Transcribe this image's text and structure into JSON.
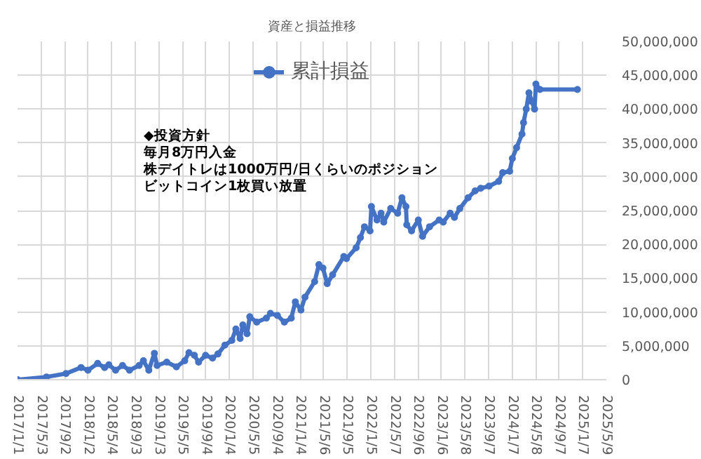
{
  "chart_data": {
    "type": "line",
    "title": "資産と損益推移",
    "x": [
      "2017-01-01",
      "2017-05-31",
      "2017-09-09",
      "2017-11-26",
      "2018-01-01",
      "2018-02-20",
      "2018-03-28",
      "2018-04-19",
      "2018-05-24",
      "2018-06-29",
      "2018-08-04",
      "2018-09-23",
      "2018-10-15",
      "2018-11-12",
      "2018-12-11",
      "2018-12-25",
      "2019-02-13",
      "2019-04-04",
      "2019-05-17",
      "2019-06-08",
      "2019-07-06",
      "2019-07-28",
      "2019-09-02",
      "2019-10-08",
      "2019-11-05",
      "2019-12-11",
      "2020-01-16",
      "2020-02-06",
      "2020-02-28",
      "2020-03-13",
      "2020-04-04",
      "2020-04-18",
      "2020-05-24",
      "2020-07-13",
      "2020-08-03",
      "2020-09-08",
      "2020-10-14",
      "2020-11-19",
      "2020-12-10",
      "2021-01-08",
      "2021-01-29",
      "2021-03-20",
      "2021-04-11",
      "2021-05-02",
      "2021-05-24",
      "2021-06-21",
      "2021-08-18",
      "2021-09-01",
      "2021-10-21",
      "2021-11-12",
      "2021-12-03",
      "2022-01-01",
      "2022-01-08",
      "2022-02-06",
      "2022-02-27",
      "2022-03-13",
      "2022-04-18",
      "2022-05-24",
      "2022-06-15",
      "2022-07-06",
      "2022-07-10",
      "2022-08-04",
      "2022-09-08",
      "2022-09-30",
      "2022-11-05",
      "2022-12-25",
      "2023-01-15",
      "2023-02-20",
      "2023-03-14",
      "2023-04-11",
      "2023-05-24",
      "2023-06-29",
      "2023-07-28",
      "2023-09-09",
      "2023-10-29",
      "2023-11-19",
      "2023-12-25",
      "2024-01-08",
      "2024-01-30",
      "2024-02-27",
      "2024-03-06",
      "2024-03-20",
      "2024-04-03",
      "2024-04-18",
      "2024-05-02",
      "2024-05-09",
      "2024-05-30",
      "2024-12-10"
    ],
    "series": [
      {
        "name": "累計損益",
        "color": "#4472c4",
        "values": [
          0,
          400000,
          900000,
          1800000,
          1400000,
          2400000,
          1800000,
          2200000,
          1400000,
          2100000,
          1400000,
          2100000,
          2800000,
          1400000,
          3900000,
          2100000,
          2600000,
          1900000,
          2800000,
          4000000,
          3600000,
          2600000,
          3600000,
          3200000,
          3800000,
          5100000,
          5800000,
          7500000,
          6100000,
          8100000,
          6800000,
          9300000,
          8500000,
          9100000,
          9800000,
          9500000,
          8500000,
          9100000,
          11500000,
          10300000,
          12200000,
          14500000,
          17000000,
          16500000,
          14200000,
          15500000,
          18200000,
          17900000,
          19500000,
          21000000,
          22600000,
          22000000,
          25600000,
          23600000,
          24600000,
          23300000,
          25300000,
          24600000,
          26900000,
          25600000,
          22900000,
          22000000,
          23600000,
          21200000,
          22600000,
          23600000,
          23300000,
          24600000,
          24000000,
          25300000,
          26900000,
          27900000,
          28300000,
          28600000,
          29300000,
          30600000,
          30800000,
          32700000,
          34300000,
          36300000,
          38000000,
          40000000,
          42400000,
          41100000,
          40000000,
          43700000,
          42900000,
          42900000
        ]
      }
    ],
    "xlim": [
      "2017-01-01",
      "2025-05-09"
    ],
    "xticks": [
      {
        "value": "2017-01-01",
        "label": "2017/1/1"
      },
      {
        "value": "2017-05-03",
        "label": "2017/5/3"
      },
      {
        "value": "2017-09-02",
        "label": "2017/9/2"
      },
      {
        "value": "2018-01-02",
        "label": "2018/1/2"
      },
      {
        "value": "2018-05-04",
        "label": "2018/5/4"
      },
      {
        "value": "2018-09-03",
        "label": "2018/9/3"
      },
      {
        "value": "2019-01-03",
        "label": "2019/1/3"
      },
      {
        "value": "2019-05-05",
        "label": "2019/5/5"
      },
      {
        "value": "2019-09-04",
        "label": "2019/9/4"
      },
      {
        "value": "2020-01-04",
        "label": "2020/1/4"
      },
      {
        "value": "2020-05-05",
        "label": "2020/5/5"
      },
      {
        "value": "2020-09-04",
        "label": "2020/9/4"
      },
      {
        "value": "2021-01-04",
        "label": "2021/1/4"
      },
      {
        "value": "2021-05-06",
        "label": "2021/5/6"
      },
      {
        "value": "2021-09-05",
        "label": "2021/9/5"
      },
      {
        "value": "2022-01-05",
        "label": "2022/1/5"
      },
      {
        "value": "2022-05-07",
        "label": "2022/5/7"
      },
      {
        "value": "2022-09-06",
        "label": "2022/9/6"
      },
      {
        "value": "2023-01-06",
        "label": "2023/1/6"
      },
      {
        "value": "2023-05-08",
        "label": "2023/5/8"
      },
      {
        "value": "2023-09-07",
        "label": "2023/9/7"
      },
      {
        "value": "2024-01-07",
        "label": "2024/1/7"
      },
      {
        "value": "2024-05-08",
        "label": "2024/5/8"
      },
      {
        "value": "2024-09-07",
        "label": "2024/9/7"
      },
      {
        "value": "2025-01-07",
        "label": "2025/1/7"
      },
      {
        "value": "2025-05-09",
        "label": "2025/5/9"
      }
    ],
    "ylim": [
      0,
      50000000
    ],
    "yticks": [
      {
        "value": 0,
        "label": "0"
      },
      {
        "value": 5000000,
        "label": "5,000,000"
      },
      {
        "value": 10000000,
        "label": "10,000,000"
      },
      {
        "value": 15000000,
        "label": "15,000,000"
      },
      {
        "value": 20000000,
        "label": "20,000,000"
      },
      {
        "value": 25000000,
        "label": "25,000,000"
      },
      {
        "value": 30000000,
        "label": "30,000,000"
      },
      {
        "value": 35000000,
        "label": "35,000,000"
      },
      {
        "value": 40000000,
        "label": "40,000,000"
      },
      {
        "value": 45000000,
        "label": "45,000,000"
      },
      {
        "value": 50000000,
        "label": "50,000,000"
      }
    ],
    "annotations": [
      "◆投資方針",
      "毎月8万円入金",
      "株デイトレは1000万円/日くらいのポジション",
      "ビットコイン1枚買い放置"
    ],
    "grid": true,
    "legend": "top",
    "marker": "circle",
    "line_style": "solid"
  }
}
